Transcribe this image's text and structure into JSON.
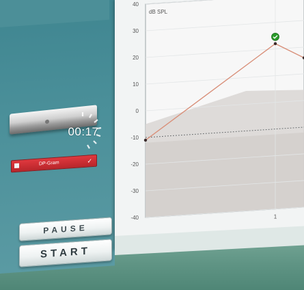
{
  "sidebar": {
    "timer": "00:17",
    "test_badge": {
      "label": "DP-Gram",
      "check": "✓"
    },
    "buttons": {
      "pause": "PAUSE",
      "start": "START"
    }
  },
  "chart_data": {
    "type": "line",
    "ylabel": "dB SPL",
    "ylim": [
      -40,
      40
    ],
    "yticks": [
      "40",
      "30",
      "20",
      "10",
      "0",
      "-10",
      "-20",
      "-30",
      "-40"
    ],
    "xticks": [
      "1"
    ],
    "series": [
      {
        "values": [
          -11,
          22,
          16
        ]
      }
    ],
    "noise_floor": -10,
    "colors": {
      "line": "#d9907a",
      "marker": "#2a9b2a"
    }
  }
}
